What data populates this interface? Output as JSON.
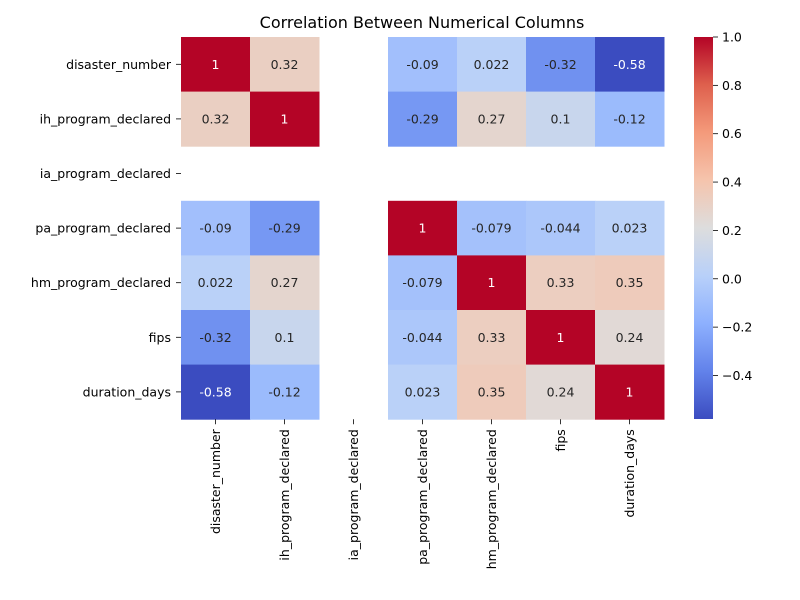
{
  "chart_data": {
    "type": "heatmap",
    "title": "Correlation Between Numerical Columns",
    "xlabel": "",
    "ylabel": "",
    "x_categories": [
      "disaster_number",
      "ih_program_declared",
      "ia_program_declared",
      "pa_program_declared",
      "hm_program_declared",
      "fips",
      "duration_days"
    ],
    "y_categories": [
      "disaster_number",
      "ih_program_declared",
      "ia_program_declared",
      "pa_program_declared",
      "hm_program_declared",
      "fips",
      "duration_days"
    ],
    "values": [
      [
        1,
        0.32,
        null,
        -0.09,
        0.022,
        -0.32,
        -0.58
      ],
      [
        0.32,
        1,
        null,
        -0.29,
        0.27,
        0.1,
        -0.12
      ],
      [
        null,
        null,
        null,
        null,
        null,
        null,
        null
      ],
      [
        -0.09,
        -0.29,
        null,
        1,
        -0.079,
        -0.044,
        0.023
      ],
      [
        0.022,
        0.27,
        null,
        -0.079,
        1,
        0.33,
        0.35
      ],
      [
        -0.32,
        0.1,
        null,
        -0.044,
        0.33,
        1,
        0.24
      ],
      [
        -0.58,
        -0.12,
        null,
        0.023,
        0.35,
        0.24,
        1
      ]
    ],
    "value_labels": [
      [
        "1",
        "0.32",
        "",
        "-0.09",
        "0.022",
        "-0.32",
        "-0.58"
      ],
      [
        "0.32",
        "1",
        "",
        "-0.29",
        "0.27",
        "0.1",
        "-0.12"
      ],
      [
        "",
        "",
        "",
        "",
        "",
        "",
        ""
      ],
      [
        "-0.09",
        "-0.29",
        "",
        "1",
        "-0.079",
        "-0.044",
        "0.023"
      ],
      [
        "0.022",
        "0.27",
        "",
        "-0.079",
        "1",
        "0.33",
        "0.35"
      ],
      [
        "-0.32",
        "0.1",
        "",
        "-0.044",
        "0.33",
        "1",
        "0.24"
      ],
      [
        "-0.58",
        "-0.12",
        "",
        "0.023",
        "0.35",
        "0.24",
        "1"
      ]
    ],
    "colorscale": "coolwarm",
    "vmin": -0.58,
    "vmax": 1.0,
    "colorbar_ticks": [
      {
        "value": 1.0,
        "label": "1.0"
      },
      {
        "value": 0.8,
        "label": "0.8"
      },
      {
        "value": 0.6,
        "label": "0.6"
      },
      {
        "value": 0.4,
        "label": "0.4"
      },
      {
        "value": 0.2,
        "label": "0.2"
      },
      {
        "value": 0.0,
        "label": "0.0"
      },
      {
        "value": -0.2,
        "label": "−0.2"
      },
      {
        "value": -0.4,
        "label": "−0.4"
      }
    ],
    "legend": "colorbar-right",
    "grid": false
  }
}
